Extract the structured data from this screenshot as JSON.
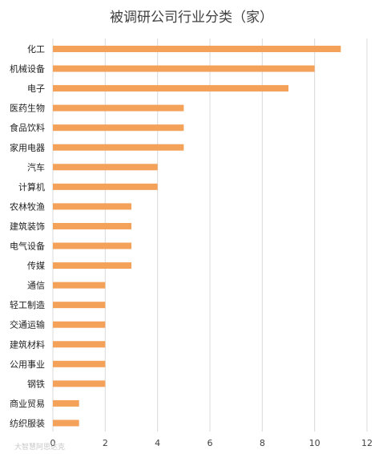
{
  "chart_data": {
    "type": "bar",
    "orientation": "horizontal",
    "title": "被调研公司行业分类（家）",
    "categories": [
      "化工",
      "机械设备",
      "电子",
      "医药生物",
      "食品饮料",
      "家用电器",
      "汽车",
      "计算机",
      "农林牧渔",
      "建筑装饰",
      "电气设备",
      "传媒",
      "通信",
      "轻工制造",
      "交通运输",
      "建筑材料",
      "公用事业",
      "钢铁",
      "商业贸易",
      "纺织服装"
    ],
    "values": [
      11,
      10,
      9,
      5,
      5,
      5,
      4,
      4,
      3,
      3,
      3,
      3,
      2,
      2,
      2,
      2,
      2,
      2,
      1,
      1
    ],
    "xlim": [
      0,
      12
    ],
    "xticks": [
      "0",
      "2",
      "4",
      "6",
      "8",
      "10",
      "12"
    ],
    "grid": true,
    "bar_color": "#F4A15A"
  },
  "watermark": "大智慧阿思达克"
}
